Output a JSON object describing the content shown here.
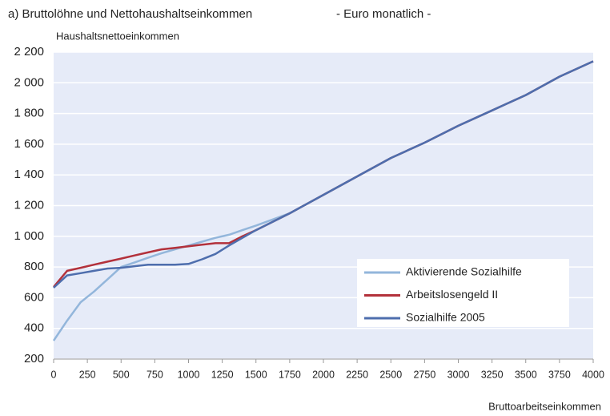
{
  "chart_data": {
    "type": "line",
    "title": "a) Bruttolöhne und Nettohaushaltseinkommen",
    "subtitle": "- Euro monatlich -",
    "y_label": "Haushaltsnettoeinkommen",
    "x_label": "Bruttoarbeitseinkommen",
    "x": [
      0,
      100,
      200,
      300,
      400,
      500,
      600,
      700,
      800,
      900,
      1000,
      1100,
      1200,
      1300,
      1400,
      1500,
      1750,
      2000,
      2250,
      2500,
      2750,
      3000,
      3250,
      3500,
      3750,
      4000
    ],
    "series": [
      {
        "name": "Aktivierende Sozialhilfe",
        "color": "#93b6db",
        "values": [
          320,
          450,
          570,
          640,
          720,
          800,
          830,
          860,
          890,
          915,
          940,
          965,
          990,
          1010,
          1040,
          1070,
          1150,
          1270,
          1390,
          1510,
          1610,
          1720,
          1820,
          1920,
          2040,
          2140
        ]
      },
      {
        "name": "Arbeitslosengeld II",
        "color": "#b3313b",
        "values": [
          670,
          775,
          795,
          815,
          835,
          855,
          875,
          895,
          915,
          925,
          935,
          945,
          955,
          955,
          1000,
          1040,
          1150,
          1270,
          1390,
          1510,
          1610,
          1720,
          1820,
          1920,
          2040,
          2140
        ]
      },
      {
        "name": "Sozialhilfe 2005",
        "color": "#4e6ead",
        "values": [
          665,
          745,
          760,
          775,
          790,
          795,
          805,
          815,
          815,
          815,
          820,
          850,
          885,
          940,
          990,
          1040,
          1150,
          1270,
          1390,
          1510,
          1610,
          1720,
          1820,
          1920,
          2040,
          2140
        ]
      }
    ],
    "xlim": [
      0,
      4000
    ],
    "xticks": [
      0,
      250,
      500,
      750,
      1000,
      1250,
      1500,
      1750,
      2000,
      2250,
      2500,
      2750,
      3000,
      3250,
      3500,
      3750,
      4000
    ],
    "ylim": [
      200,
      2200
    ],
    "yticks": [
      {
        "value": 200,
        "label": "200"
      },
      {
        "value": 400,
        "label": "400"
      },
      {
        "value": 600,
        "label": "600"
      },
      {
        "value": 800,
        "label": "800"
      },
      {
        "value": 1000,
        "label": "1 000"
      },
      {
        "value": 1200,
        "label": "1 200"
      },
      {
        "value": 1400,
        "label": "1 400"
      },
      {
        "value": 1600,
        "label": "1 600"
      },
      {
        "value": 1800,
        "label": "1 800"
      },
      {
        "value": 2000,
        "label": "2 000"
      },
      {
        "value": 2200,
        "label": "2 200"
      }
    ],
    "grid": true,
    "legend": "lower right"
  }
}
